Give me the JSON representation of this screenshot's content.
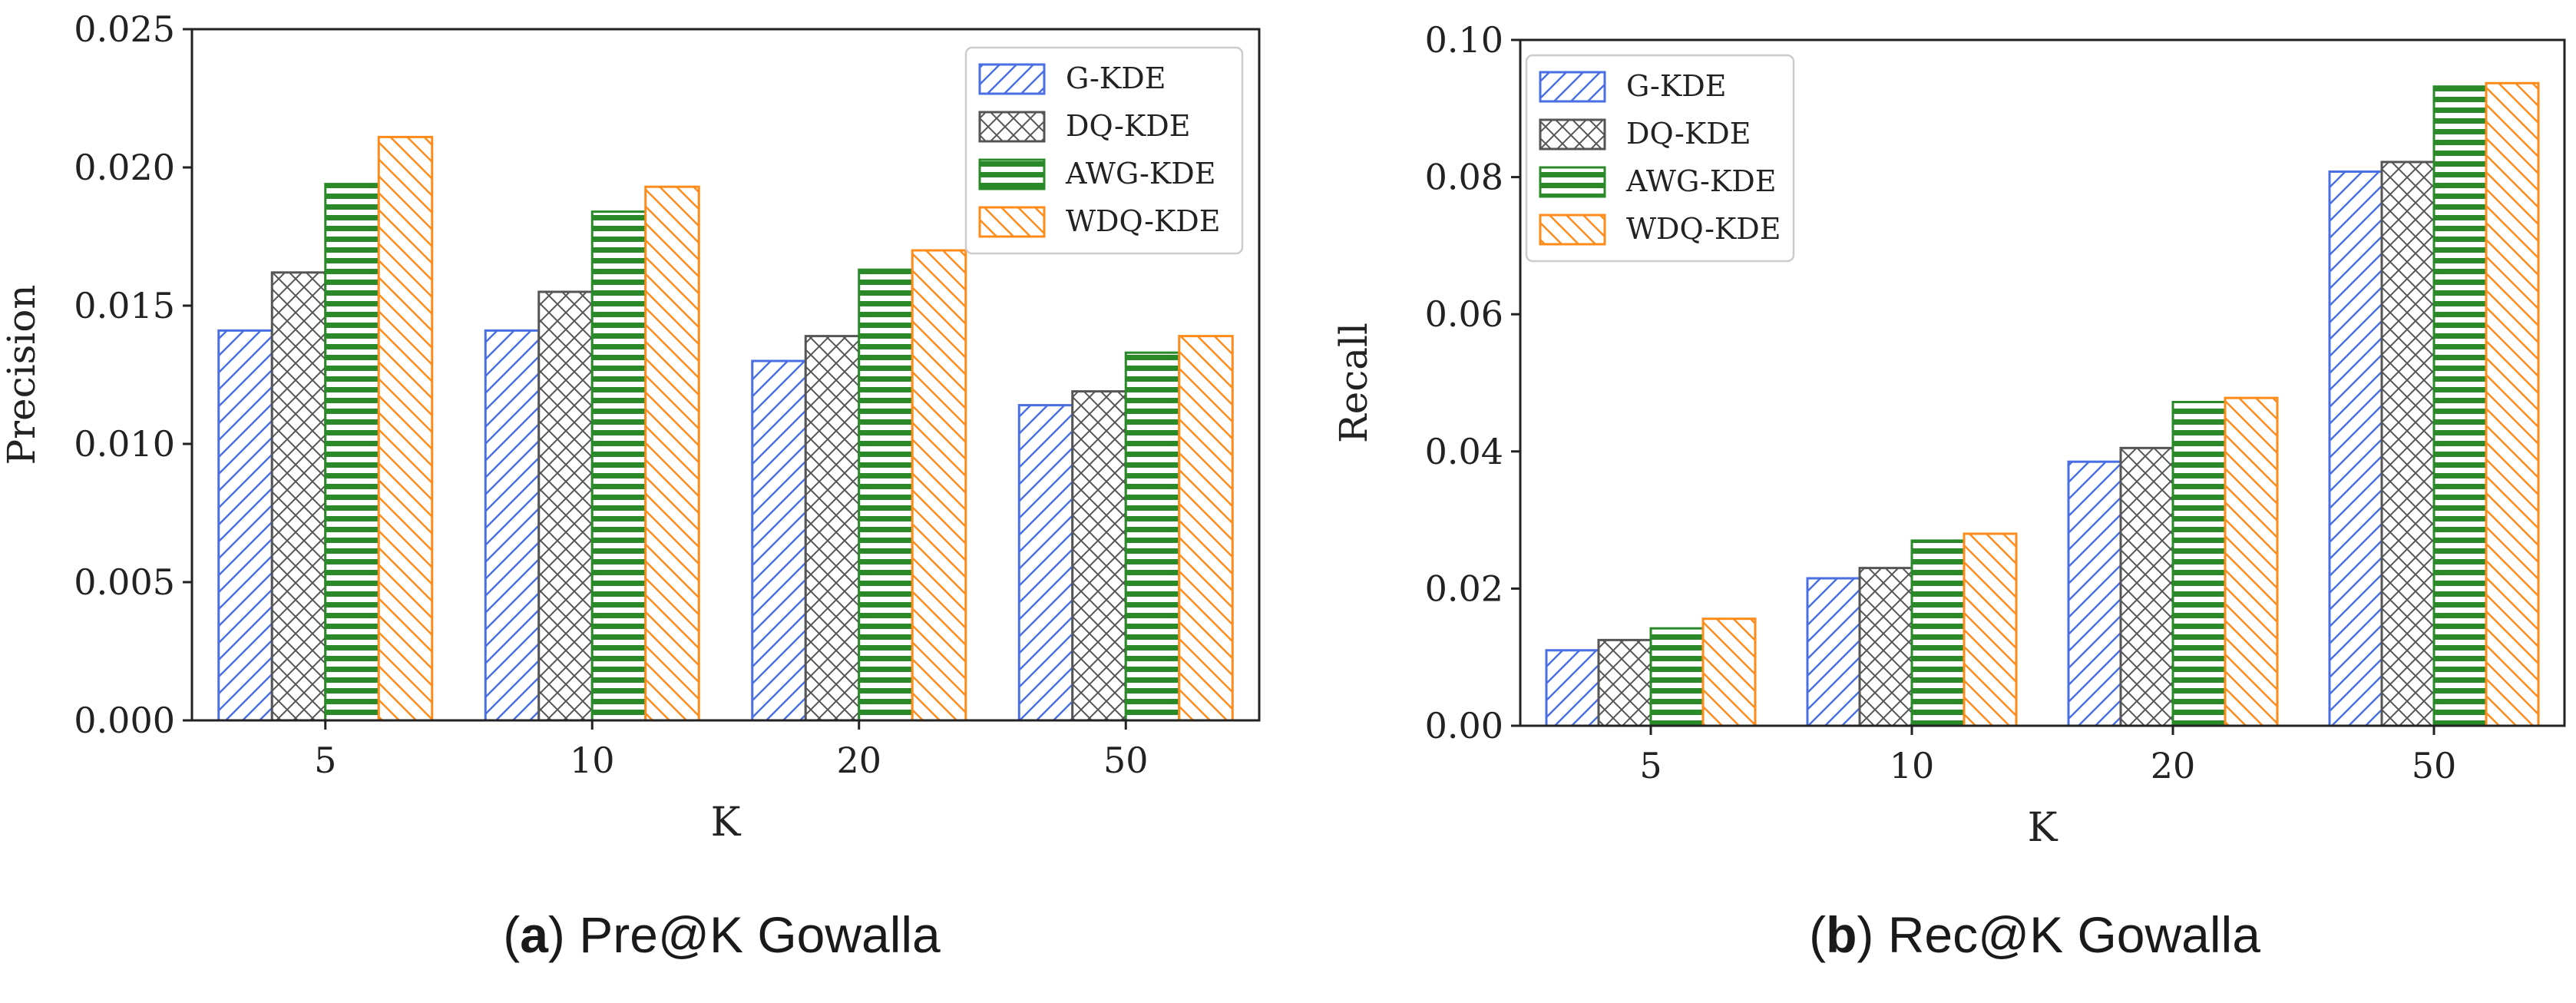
{
  "figure": {
    "panels": [
      {
        "caption": {
          "label": "a",
          "text": "Pre@K Gowalla"
        }
      },
      {
        "caption": {
          "label": "b",
          "text": "Rec@K Gowalla"
        }
      }
    ]
  },
  "series_style": [
    {
      "name": "G-KDE",
      "color": "#4a6fe3",
      "pattern": "diag-right"
    },
    {
      "name": "DQ-KDE",
      "color": "#555555",
      "pattern": "crosshatch"
    },
    {
      "name": "AWG-KDE",
      "color": "#2a8a2a",
      "pattern": "horizontal"
    },
    {
      "name": "WDQ-KDE",
      "color": "#ff8c1a",
      "pattern": "diag-left"
    }
  ],
  "chart_data": [
    {
      "type": "bar",
      "title": "",
      "xlabel": "K",
      "ylabel": "Precision",
      "categories": [
        "5",
        "10",
        "20",
        "50"
      ],
      "ylim": [
        0,
        0.025
      ],
      "yticks": [
        "0.000",
        "0.005",
        "0.010",
        "0.015",
        "0.020",
        "0.025"
      ],
      "ytick_values": [
        0,
        0.005,
        0.01,
        0.015,
        0.02,
        0.025
      ],
      "legend_position": "top-right",
      "series": [
        {
          "name": "G-KDE",
          "values": [
            0.0141,
            0.0141,
            0.013,
            0.0114
          ]
        },
        {
          "name": "DQ-KDE",
          "values": [
            0.0162,
            0.0155,
            0.0139,
            0.0119
          ]
        },
        {
          "name": "AWG-KDE",
          "values": [
            0.0194,
            0.0184,
            0.0163,
            0.0133
          ]
        },
        {
          "name": "WDQ-KDE",
          "values": [
            0.0211,
            0.0193,
            0.017,
            0.0139
          ]
        }
      ]
    },
    {
      "type": "bar",
      "title": "",
      "xlabel": "K",
      "ylabel": "Recall",
      "categories": [
        "5",
        "10",
        "20",
        "50"
      ],
      "ylim": [
        0,
        0.1
      ],
      "yticks": [
        "0.00",
        "0.02",
        "0.04",
        "0.06",
        "0.08",
        "0.10"
      ],
      "ytick_values": [
        0,
        0.02,
        0.04,
        0.06,
        0.08,
        0.1
      ],
      "legend_position": "top-left",
      "series": [
        {
          "name": "G-KDE",
          "values": [
            0.011,
            0.0215,
            0.0385,
            0.0808
          ]
        },
        {
          "name": "DQ-KDE",
          "values": [
            0.0125,
            0.023,
            0.0405,
            0.0822
          ]
        },
        {
          "name": "AWG-KDE",
          "values": [
            0.0142,
            0.027,
            0.0472,
            0.0932
          ]
        },
        {
          "name": "WDQ-KDE",
          "values": [
            0.0156,
            0.028,
            0.0478,
            0.0937
          ]
        }
      ]
    }
  ]
}
